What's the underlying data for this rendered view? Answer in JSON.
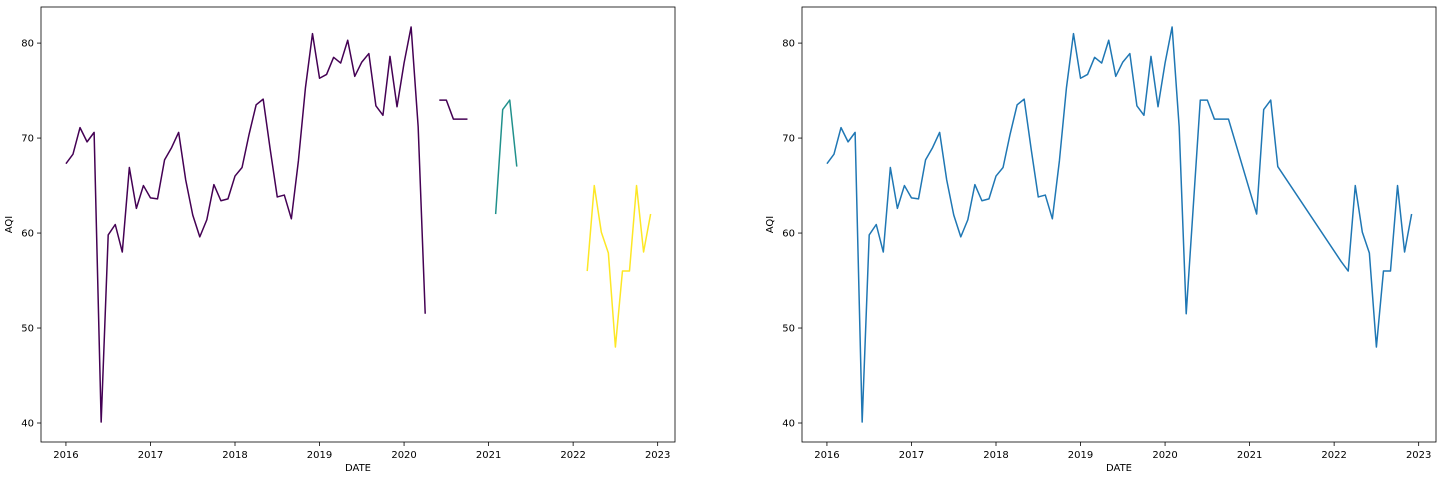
{
  "chart_data": [
    {
      "type": "line",
      "xlabel": "DATE",
      "ylabel": "AQI",
      "xlim": [
        "2015-09-15",
        "2023-03-15"
      ],
      "ylim": [
        38.0,
        83.8
      ],
      "x_ticks": [
        "2016",
        "2017",
        "2018",
        "2019",
        "2020",
        "2021",
        "2022",
        "2023"
      ],
      "y_ticks": [
        "40",
        "50",
        "60",
        "70",
        "80"
      ],
      "grid": false,
      "series": [
        {
          "color": "#440154",
          "segments": [
            {
              "x": [
                "2016-01",
                "2016-02",
                "2016-03",
                "2016-04",
                "2016-05",
                "2016-06",
                "2016-07",
                "2016-08",
                "2016-09",
                "2016-10",
                "2016-11",
                "2016-12",
                "2017-01",
                "2017-02",
                "2017-03",
                "2017-04",
                "2017-05",
                "2017-06",
                "2017-07",
                "2017-08",
                "2017-09",
                "2017-10",
                "2017-11",
                "2017-12",
                "2018-01",
                "2018-02",
                "2018-03",
                "2018-04",
                "2018-05",
                "2018-06",
                "2018-07",
                "2018-08",
                "2018-09",
                "2018-10",
                "2018-11",
                "2018-12",
                "2019-01",
                "2019-02",
                "2019-03",
                "2019-04",
                "2019-05",
                "2019-06",
                "2019-07",
                "2019-08",
                "2019-09",
                "2019-10",
                "2019-11",
                "2019-12",
                "2020-01",
                "2020-02",
                "2020-03",
                "2020-04"
              ],
              "y": [
                67.3,
                68.3,
                71.1,
                69.6,
                70.6,
                40.1,
                59.8,
                60.9,
                58.0,
                66.9,
                62.6,
                65.0,
                63.7,
                63.6,
                67.7,
                69.0,
                70.6,
                65.6,
                61.9,
                59.6,
                61.4,
                65.1,
                63.4,
                63.6,
                66.0,
                66.9,
                70.4,
                73.5,
                74.1,
                68.8,
                63.8,
                64.0,
                61.5,
                67.6,
                75.3,
                81.0,
                76.3,
                76.7,
                78.5,
                77.9,
                80.3,
                76.5,
                78.0,
                78.9,
                73.4,
                72.4,
                78.6,
                73.3,
                77.9,
                81.7,
                71.2,
                51.5
              ]
            },
            {
              "x": [
                "2020-06",
                "2020-07",
                "2020-08",
                "2020-09",
                "2020-10"
              ],
              "y": [
                74.0,
                74.0,
                72.0,
                72.0,
                72.0
              ]
            }
          ]
        },
        {
          "color": "#21918c",
          "segments": [
            {
              "x": [
                "2021-02",
                "2021-03",
                "2021-04",
                "2021-05"
              ],
              "y": [
                62.0,
                73.0,
                74.0,
                67.0
              ]
            }
          ]
        },
        {
          "color": "#fde725",
          "segments": [
            {
              "x": [
                "2022-03",
                "2022-04",
                "2022-05",
                "2022-06",
                "2022-07",
                "2022-08",
                "2022-09",
                "2022-10",
                "2022-11",
                "2022-12"
              ],
              "y": [
                56.0,
                65.0,
                60.1,
                57.9,
                48.0,
                56.0,
                56.0,
                65.0,
                58.0,
                62.0
              ]
            }
          ]
        }
      ]
    },
    {
      "type": "line",
      "xlabel": "DATE",
      "ylabel": "AQI",
      "xlim": [
        "2015-09-15",
        "2023-03-15"
      ],
      "ylim": [
        38.0,
        83.8
      ],
      "x_ticks": [
        "2016",
        "2017",
        "2018",
        "2019",
        "2020",
        "2021",
        "2022",
        "2023"
      ],
      "y_ticks": [
        "40",
        "50",
        "60",
        "70",
        "80"
      ],
      "grid": false,
      "series": [
        {
          "color": "#1f77b4",
          "segments": [
            {
              "x": [
                "2016-01",
                "2016-02",
                "2016-03",
                "2016-04",
                "2016-05",
                "2016-06",
                "2016-07",
                "2016-08",
                "2016-09",
                "2016-10",
                "2016-11",
                "2016-12",
                "2017-01",
                "2017-02",
                "2017-03",
                "2017-04",
                "2017-05",
                "2017-06",
                "2017-07",
                "2017-08",
                "2017-09",
                "2017-10",
                "2017-11",
                "2017-12",
                "2018-01",
                "2018-02",
                "2018-03",
                "2018-04",
                "2018-05",
                "2018-06",
                "2018-07",
                "2018-08",
                "2018-09",
                "2018-10",
                "2018-11",
                "2018-12",
                "2019-01",
                "2019-02",
                "2019-03",
                "2019-04",
                "2019-05",
                "2019-06",
                "2019-07",
                "2019-08",
                "2019-09",
                "2019-10",
                "2019-11",
                "2019-12",
                "2020-01",
                "2020-02",
                "2020-03",
                "2020-04",
                "2020-06",
                "2020-07",
                "2020-08",
                "2020-09",
                "2020-10",
                "2021-02",
                "2021-03",
                "2021-04",
                "2021-05",
                "2022-02",
                "2022-03",
                "2022-04",
                "2022-05",
                "2022-06",
                "2022-07",
                "2022-08",
                "2022-09",
                "2022-10",
                "2022-11",
                "2022-12"
              ],
              "y": [
                67.3,
                68.3,
                71.1,
                69.6,
                70.6,
                40.1,
                59.8,
                60.9,
                58.0,
                66.9,
                62.6,
                65.0,
                63.7,
                63.6,
                67.7,
                69.0,
                70.6,
                65.6,
                61.9,
                59.6,
                61.4,
                65.1,
                63.4,
                63.6,
                66.0,
                66.9,
                70.4,
                73.5,
                74.1,
                68.8,
                63.8,
                64.0,
                61.5,
                67.6,
                75.3,
                81.0,
                76.3,
                76.7,
                78.5,
                77.9,
                80.3,
                76.5,
                78.0,
                78.9,
                73.4,
                72.4,
                78.6,
                73.3,
                77.9,
                81.7,
                71.2,
                51.5,
                74.0,
                74.0,
                72.0,
                72.0,
                72.0,
                62.0,
                73.0,
                74.0,
                67.0,
                57.0,
                56.0,
                65.0,
                60.1,
                57.9,
                48.0,
                56.0,
                56.0,
                65.0,
                58.0,
                62.0
              ]
            }
          ]
        }
      ]
    }
  ]
}
